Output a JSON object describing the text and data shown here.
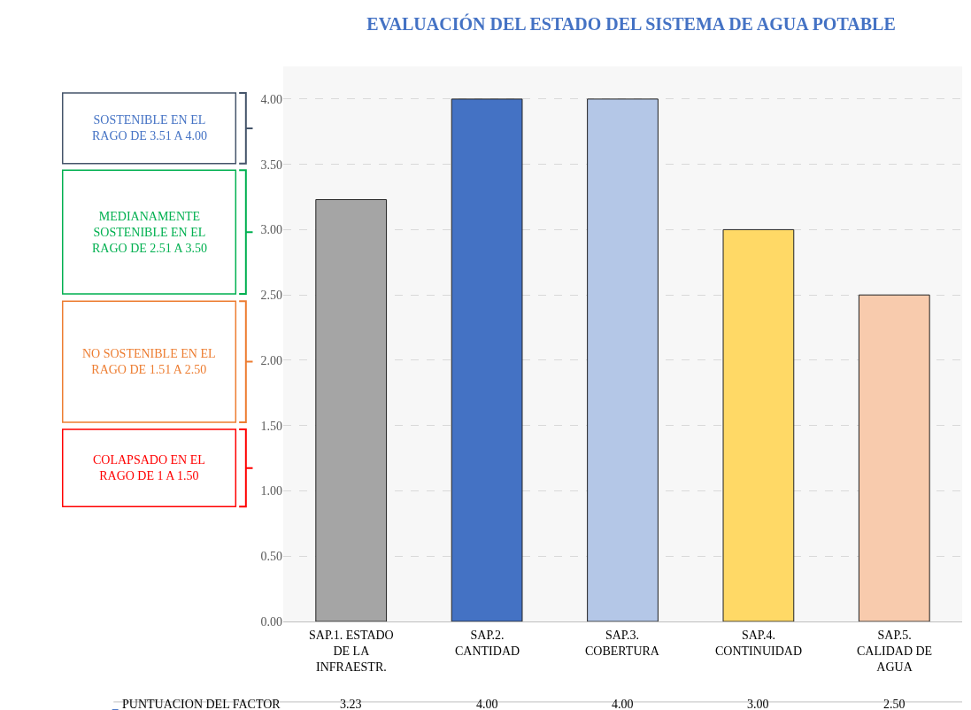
{
  "chart_data": {
    "type": "bar",
    "title": "EVALUACIÓN DEL ESTADO DEL SISTEMA DE AGUA POTABLE",
    "categories": [
      "SAP.1. ESTADO DE LA INFRAESTR.",
      "SAP.2. CANTIDAD",
      "SAP.3. COBERTURA",
      "SAP.4. CONTINUIDAD",
      "SAP.5. CALIDAD DE AGUA"
    ],
    "series": [
      {
        "name": "PUNTUACION DEL FACTOR",
        "color": "#4472c4",
        "colors": [
          "#a5a5a5",
          "#4472c4",
          "#b4c7e7",
          "#ffd966",
          "#f8cbad"
        ],
        "values": [
          3.23,
          4.0,
          4.0,
          3.0,
          2.5
        ],
        "value_labels": [
          "3.23",
          "4.00",
          "4.00",
          "3.00",
          "2.50"
        ]
      }
    ],
    "ylim": [
      0,
      4.25
    ],
    "yticks": [
      {
        "value": 0,
        "label": "0.00"
      },
      {
        "value": 0.5,
        "label": "0.50"
      },
      {
        "value": 1,
        "label": "1.00"
      },
      {
        "value": 1.5,
        "label": "1.50"
      },
      {
        "value": 2,
        "label": "2.00"
      },
      {
        "value": 2.5,
        "label": "2.50"
      },
      {
        "value": 3,
        "label": "3.00"
      },
      {
        "value": 3.5,
        "label": "3.50"
      },
      {
        "value": 4,
        "label": "4.00"
      }
    ],
    "grid": "y",
    "annotations": [
      "SOSTENIBLE EN EL RAGO DE 3.51 A 4.00",
      "MEDIANAMENTE SOSTENIBLE EN EL RAGO DE 2.51 A 3.50",
      "NO SOSTENIBLE EN EL RAGO DE 1.51 A 2.50",
      "COLAPSADO EN EL RAGO DE 1 A 1.50"
    ]
  }
}
